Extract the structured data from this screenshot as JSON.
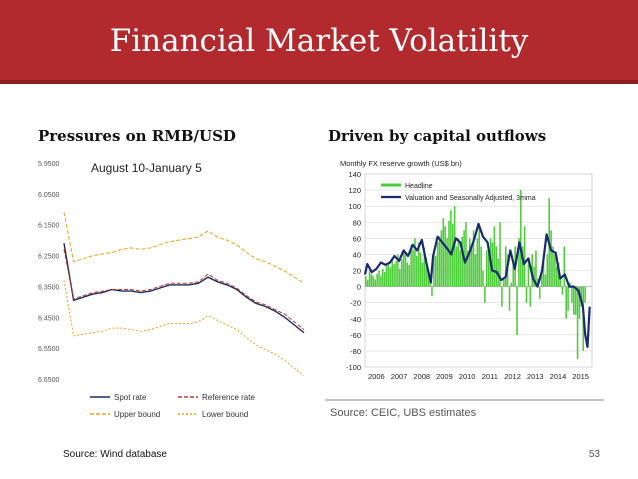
{
  "slide": {
    "title": "Financial Market Volatility",
    "left_heading": "Pressures on RMB/USD",
    "right_heading": "Driven by capital outflows",
    "source_left": "Source: Wind database",
    "page_number": "53",
    "colors": {
      "banner": "#b22a2e",
      "banner_line": "#8c1d22"
    }
  },
  "chart_data": [
    {
      "type": "line",
      "title": "August 10-January 5",
      "y_ticks": [
        "5.9500",
        "6.0500",
        "6.1500",
        "6.2500",
        "6.3500",
        "6.4500",
        "6.5500",
        "6.6500"
      ],
      "ylim": [
        6.65,
        5.95
      ],
      "y_inverted": true,
      "legend_position": "bottom",
      "x": [
        0,
        4,
        8,
        12,
        16,
        20,
        24,
        28,
        32,
        36,
        40,
        44,
        48,
        52,
        56,
        60,
        64,
        68,
        72,
        76,
        80,
        84,
        88,
        92,
        96,
        100
      ],
      "series": [
        {
          "name": "Spot rate",
          "color": "#1f2a5c",
          "dash": "solid",
          "values": [
            6.21,
            6.395,
            6.385,
            6.375,
            6.37,
            6.36,
            6.365,
            6.365,
            6.37,
            6.365,
            6.355,
            6.345,
            6.345,
            6.345,
            6.34,
            6.32,
            6.335,
            6.345,
            6.36,
            6.385,
            6.405,
            6.415,
            6.43,
            6.45,
            6.475,
            6.5
          ]
        },
        {
          "name": "Reference rate",
          "color": "#c0392b",
          "dash": "dashed",
          "values": [
            6.23,
            6.39,
            6.38,
            6.37,
            6.365,
            6.36,
            6.36,
            6.36,
            6.365,
            6.36,
            6.35,
            6.34,
            6.34,
            6.34,
            6.335,
            6.31,
            6.33,
            6.34,
            6.355,
            6.38,
            6.4,
            6.41,
            6.425,
            6.44,
            6.465,
            6.49
          ]
        },
        {
          "name": "Upper bound",
          "color": "#e5a21d",
          "dash": "dashed",
          "values": [
            6.11,
            6.27,
            6.26,
            6.25,
            6.245,
            6.24,
            6.23,
            6.225,
            6.23,
            6.225,
            6.215,
            6.205,
            6.2,
            6.195,
            6.19,
            6.17,
            6.19,
            6.2,
            6.215,
            6.24,
            6.26,
            6.27,
            6.285,
            6.3,
            6.32,
            6.34
          ]
        },
        {
          "name": "Lower bound",
          "color": "#e5a21d",
          "dash": "dotted",
          "values": [
            6.33,
            6.51,
            6.505,
            6.5,
            6.495,
            6.485,
            6.485,
            6.49,
            6.495,
            6.49,
            6.48,
            6.47,
            6.47,
            6.47,
            6.465,
            6.445,
            6.46,
            6.475,
            6.49,
            6.515,
            6.54,
            6.555,
            6.57,
            6.59,
            6.615,
            6.64
          ]
        }
      ]
    },
    {
      "type": "bar",
      "title": "Monthly FX reserve growth (US$ bn)",
      "source": "Source:  CEIC, UBS estimates",
      "ylim": [
        -100,
        140
      ],
      "y_ticks": [
        -100,
        -80,
        -60,
        -40,
        -20,
        0,
        20,
        40,
        60,
        80,
        100,
        120,
        140
      ],
      "x_labels": [
        "2006",
        "2007",
        "2008",
        "2009",
        "2010",
        "2011",
        "2012",
        "2013",
        "2014",
        "2015"
      ],
      "xlim": [
        2006,
        2016
      ],
      "legend_position": "top-left",
      "grid": true,
      "headline": {
        "name": "Headline",
        "color": "#4dcc3a",
        "start": 2006.0,
        "step": 0.0833,
        "values": [
          13,
          8,
          20,
          16,
          13,
          9,
          16,
          20,
          13,
          22,
          18,
          26,
          30,
          24,
          36,
          28,
          32,
          40,
          22,
          34,
          45,
          40,
          30,
          27,
          52,
          46,
          60,
          38,
          55,
          42,
          30,
          48,
          36,
          20,
          8,
          -12,
          45,
          38,
          55,
          62,
          70,
          85,
          75,
          60,
          82,
          95,
          78,
          100,
          50,
          60,
          45,
          62,
          70,
          80,
          45,
          60,
          50,
          70,
          40,
          60,
          75,
          50,
          20,
          -20,
          45,
          40,
          60,
          55,
          75,
          50,
          35,
          80,
          -25,
          10,
          50,
          40,
          -30,
          5,
          30,
          50,
          -60,
          60,
          120,
          50,
          75,
          -20,
          30,
          -25,
          40,
          25,
          45,
          10,
          -15,
          20,
          30,
          15,
          40,
          110,
          70,
          50,
          40,
          25,
          30,
          10,
          -10,
          50,
          -40,
          -30,
          5,
          -20,
          -35,
          -35,
          -90,
          -40,
          -25,
          -80,
          -20
        ]
      },
      "valuation": {
        "name": "Valuation and Seasonally Adjusted, 3mma",
        "color": "#1a2a6e",
        "x": [
          2006.0,
          2006.1,
          2006.3,
          2006.5,
          2006.7,
          2006.9,
          2007.1,
          2007.3,
          2007.5,
          2007.7,
          2007.9,
          2008.1,
          2008.3,
          2008.5,
          2008.7,
          2008.9,
          2009.0,
          2009.2,
          2009.4,
          2009.6,
          2009.8,
          2010.0,
          2010.2,
          2010.4,
          2010.6,
          2010.8,
          2011.0,
          2011.2,
          2011.4,
          2011.6,
          2011.8,
          2012.0,
          2012.2,
          2012.4,
          2012.6,
          2012.8,
          2013.0,
          2013.2,
          2013.4,
          2013.6,
          2013.8,
          2014.0,
          2014.2,
          2014.4,
          2014.6,
          2014.8,
          2015.0,
          2015.2,
          2015.4,
          2015.6,
          2015.7,
          2015.8,
          2015.9
        ],
        "values": [
          15,
          28,
          18,
          22,
          30,
          27,
          30,
          38,
          32,
          45,
          38,
          52,
          45,
          58,
          30,
          5,
          38,
          62,
          55,
          48,
          40,
          60,
          55,
          30,
          42,
          58,
          78,
          62,
          55,
          20,
          18,
          8,
          12,
          45,
          22,
          55,
          28,
          35,
          10,
          0,
          20,
          65,
          45,
          42,
          10,
          15,
          0,
          0,
          -5,
          -25,
          -60,
          -75,
          -25
        ]
      }
    }
  ]
}
